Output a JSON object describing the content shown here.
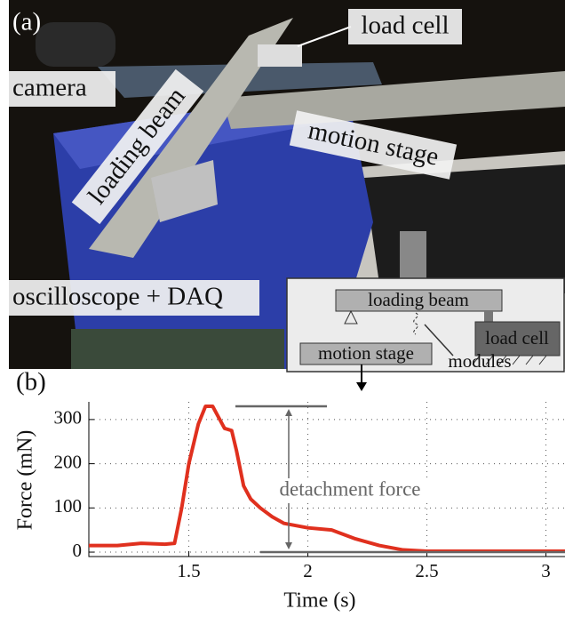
{
  "panel_a": {
    "label": "(a)",
    "annotations": {
      "load_cell": "load cell",
      "camera": "camera",
      "loading_beam": "loading beam",
      "motion_stage": "motion stage",
      "oscilloscope": "oscilloscope + DAQ"
    },
    "inset": {
      "loading_beam": "loading beam",
      "load_cell": "load cell",
      "motion_stage": "motion stage",
      "modules": "modules"
    }
  },
  "chart_data": {
    "type": "line",
    "panel_label": "(b)",
    "x_label": "Time (s)",
    "y_label": "Force (mN)",
    "annotation": "detachment force",
    "xlim": [
      1.08,
      3.08
    ],
    "ylim": [
      -10,
      340
    ],
    "xticks": [
      1.5,
      2,
      2.5,
      3
    ],
    "yticks": [
      0,
      100,
      200,
      300
    ],
    "grid": true,
    "series": [
      {
        "color": "#e0301e",
        "x": [
          1.08,
          1.2,
          1.3,
          1.4,
          1.44,
          1.47,
          1.5,
          1.54,
          1.57,
          1.6,
          1.62,
          1.65,
          1.68,
          1.7,
          1.73,
          1.76,
          1.8,
          1.85,
          1.9,
          2.0,
          2.1,
          2.15,
          2.2,
          2.3,
          2.4,
          2.5,
          3.08
        ],
        "values": [
          15,
          15,
          20,
          18,
          20,
          100,
          200,
          290,
          330,
          330,
          310,
          280,
          275,
          230,
          150,
          120,
          100,
          80,
          65,
          55,
          50,
          40,
          30,
          15,
          5,
          2,
          2
        ]
      }
    ]
  }
}
